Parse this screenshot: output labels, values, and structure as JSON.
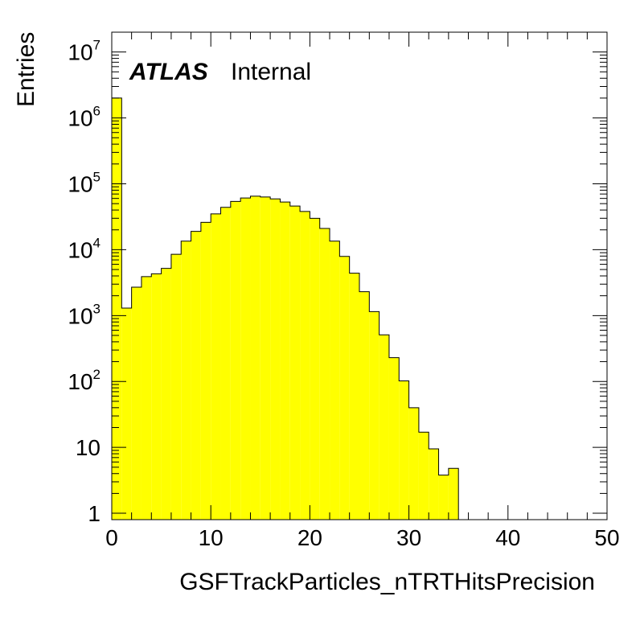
{
  "chart_data": {
    "type": "bar",
    "subtype": "histogram",
    "title": "",
    "xlabel": "GSFTrackParticles_nTRTHitsPrecision",
    "ylabel": "Entries",
    "xlim": [
      0,
      50
    ],
    "ylim": [
      0.8,
      20000000
    ],
    "y_scale": "log",
    "bin_width": 1,
    "fill_color": "#ffff00",
    "line_color": "#000000",
    "grid": false,
    "x_tick_labels": [
      "0",
      "10",
      "20",
      "30",
      "40",
      "50"
    ],
    "y_tick_labels": [
      {
        "base": "1",
        "exp": ""
      },
      {
        "base": "10",
        "exp": ""
      },
      {
        "base": "10",
        "exp": "2"
      },
      {
        "base": "10",
        "exp": "3"
      },
      {
        "base": "10",
        "exp": "4"
      },
      {
        "base": "10",
        "exp": "5"
      },
      {
        "base": "10",
        "exp": "6"
      },
      {
        "base": "10",
        "exp": "7"
      }
    ],
    "bins": [
      {
        "x": 0,
        "value": 2000000
      },
      {
        "x": 1,
        "value": 1300
      },
      {
        "x": 2,
        "value": 2700
      },
      {
        "x": 3,
        "value": 3900
      },
      {
        "x": 4,
        "value": 4300
      },
      {
        "x": 5,
        "value": 5200
      },
      {
        "x": 6,
        "value": 8500
      },
      {
        "x": 7,
        "value": 13500
      },
      {
        "x": 8,
        "value": 19000
      },
      {
        "x": 9,
        "value": 26000
      },
      {
        "x": 10,
        "value": 35000
      },
      {
        "x": 11,
        "value": 44000
      },
      {
        "x": 12,
        "value": 54000
      },
      {
        "x": 13,
        "value": 61000
      },
      {
        "x": 14,
        "value": 65000
      },
      {
        "x": 15,
        "value": 63000
      },
      {
        "x": 16,
        "value": 59000
      },
      {
        "x": 17,
        "value": 53000
      },
      {
        "x": 18,
        "value": 46000
      },
      {
        "x": 19,
        "value": 38000
      },
      {
        "x": 20,
        "value": 30000
      },
      {
        "x": 21,
        "value": 21000
      },
      {
        "x": 22,
        "value": 13500
      },
      {
        "x": 23,
        "value": 7900
      },
      {
        "x": 24,
        "value": 4400
      },
      {
        "x": 25,
        "value": 2300
      },
      {
        "x": 26,
        "value": 1150
      },
      {
        "x": 27,
        "value": 510
      },
      {
        "x": 28,
        "value": 230
      },
      {
        "x": 29,
        "value": 102
      },
      {
        "x": 30,
        "value": 40
      },
      {
        "x": 31,
        "value": 17
      },
      {
        "x": 32,
        "value": 9.5
      },
      {
        "x": 33,
        "value": 3.8
      },
      {
        "x": 34,
        "value": 4.8
      }
    ]
  },
  "label": {
    "experiment": "ATLAS",
    "status": "Internal"
  }
}
